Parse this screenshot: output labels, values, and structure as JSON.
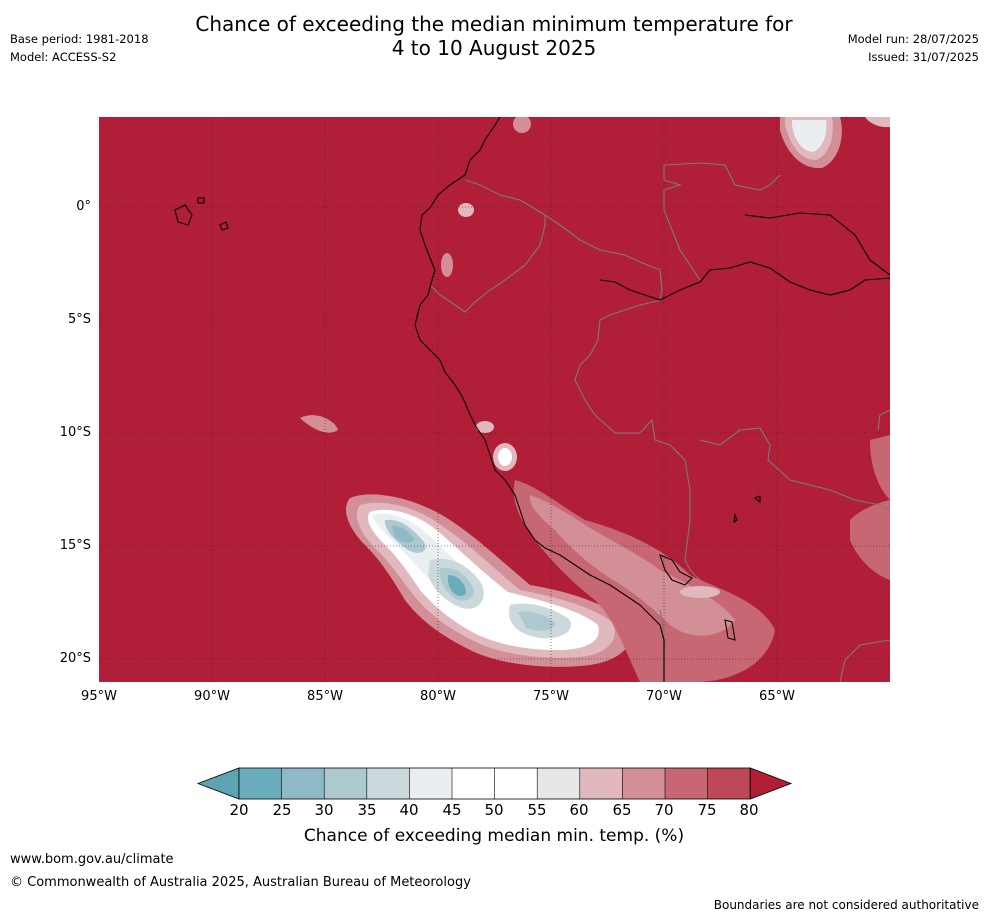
{
  "title": {
    "line1": "Chance of exceeding the median minimum temperature for",
    "line2": "4 to 10 August 2025"
  },
  "meta": {
    "base_period": "Base period: 1981-2018",
    "model": "Model: ACCESS-S2",
    "model_run": "Model run: 28/07/2025",
    "issued": "Issued: 31/07/2025"
  },
  "map": {
    "lat_labels": [
      "0°",
      "5°S",
      "10°S",
      "15°S",
      "20°S"
    ],
    "lon_labels": [
      "95°W",
      "90°W",
      "85°W",
      "80°W",
      "75°W",
      "70°W",
      "65°W"
    ],
    "background_color": "#b11e38"
  },
  "colorbar": {
    "ticks": [
      "20",
      "25",
      "30",
      "35",
      "40",
      "45",
      "50",
      "55",
      "60",
      "65",
      "70",
      "75",
      "80"
    ],
    "colors": [
      "#6aadba",
      "#8eb9c5",
      "#adc9d0",
      "#cbd9dd",
      "#e9eff1",
      "#ffffff",
      "#ffffff",
      "#e7e7e7",
      "#e0b8bd",
      "#d38f98",
      "#c86774",
      "#be4858"
    ],
    "under_color": "#5aa4b3",
    "over_color": "#b11e38",
    "title": "Chance of exceeding median min. temp. (%)"
  },
  "footer": {
    "url": "www.bom.gov.au/climate",
    "copyright": "© Commonwealth of Australia 2025, Australian Bureau of Meteorology",
    "note": "Boundaries are not considered authoritative"
  }
}
